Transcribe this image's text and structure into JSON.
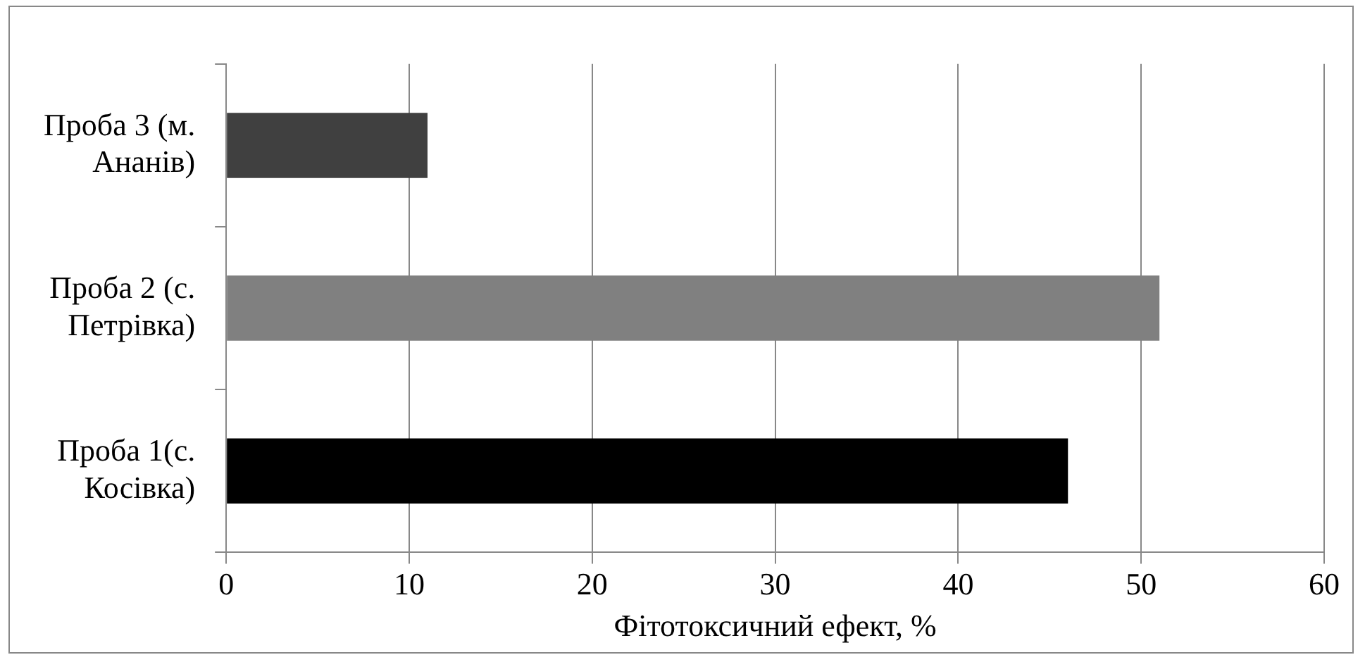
{
  "chart_data": {
    "type": "bar",
    "orientation": "horizontal",
    "xlabel": "Фітотоксичний ефект, %",
    "categories": [
      "Проба 3 (м. Ананів)",
      "Проба 2 (с. Петрівка)",
      "Проба 1(с. Косівка)"
    ],
    "values": [
      11,
      51,
      46
    ],
    "colors": [
      "#404040",
      "#808080",
      "#000000"
    ],
    "xlim": [
      0,
      60
    ],
    "xticks": [
      0,
      10,
      20,
      30,
      40,
      50,
      60
    ],
    "grid": "x",
    "legend": false
  }
}
